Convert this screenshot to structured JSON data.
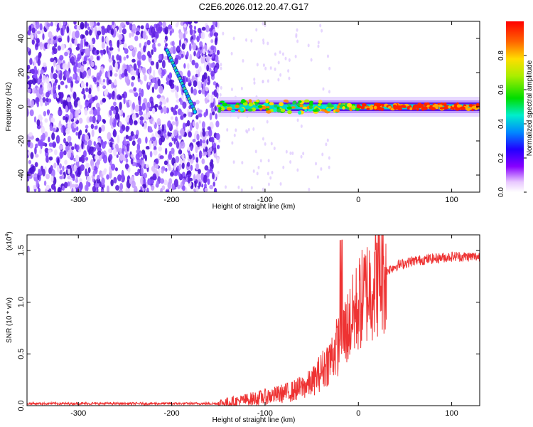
{
  "title": "C2E6.2026.012.20.47.G17",
  "chart_data": [
    {
      "type": "heatmap",
      "title": "C2E6.2026.012.20.47.G17",
      "xlabel": "Height of straight line (km)",
      "ylabel": "Frequency (Hz)",
      "xlim": [
        -355,
        130
      ],
      "ylim": [
        -50,
        50
      ],
      "xticks": [
        -300,
        -200,
        -100,
        0,
        100
      ],
      "xtick_labels": [
        "-300",
        "-200",
        "-100",
        "0",
        "100"
      ],
      "yticks": [
        -40,
        -20,
        0,
        20,
        40
      ],
      "ytick_labels": [
        "-40",
        "-20",
        "0",
        "20",
        "40"
      ],
      "noise_region_x": [
        -355,
        -150
      ],
      "diagonal_trace": {
        "x": [
          -205,
          -175
        ],
        "y": [
          33,
          -3
        ]
      },
      "signal_band": {
        "x_start": -150,
        "x_end": 130,
        "center_hz": 0
      },
      "colorbar": {
        "label": "Normalized spectral amplitude",
        "range": [
          0.0,
          1.0
        ],
        "ticks": [
          0.0,
          0.2,
          0.4,
          0.6,
          0.8
        ],
        "tick_labels": [
          "0.0",
          "0.2",
          "0.4",
          "0.6",
          "0.8"
        ]
      }
    },
    {
      "type": "line",
      "xlabel": "Height of straight line (km)",
      "ylabel": "SNR (10 * v/v)",
      "scale_label": "(x10",
      "scale_exp": "4",
      "scale_close": ")",
      "xlim": [
        -355,
        130
      ],
      "ylim": [
        0,
        1.65
      ],
      "xticks": [
        -300,
        -200,
        -100,
        0,
        100
      ],
      "xtick_labels": [
        "-300",
        "-200",
        "-100",
        "0",
        "100"
      ],
      "yticks": [
        0,
        0.5,
        1.0,
        1.5
      ],
      "ytick_labels": [
        "0.0",
        "0.5",
        "1.0",
        "1.5"
      ],
      "color": "#ee3333",
      "series": [
        {
          "name": "SNR",
          "x": [
            -355,
            -300,
            -250,
            -200,
            -150,
            -130,
            -110,
            -90,
            -70,
            -50,
            -40,
            -30,
            -20,
            -10,
            0,
            10,
            20,
            30,
            40,
            60,
            80,
            100,
            130
          ],
          "y": [
            0.02,
            0.02,
            0.02,
            0.02,
            0.02,
            0.04,
            0.07,
            0.1,
            0.14,
            0.22,
            0.33,
            0.45,
            0.62,
            0.78,
            0.97,
            1.12,
            1.24,
            1.3,
            1.35,
            1.4,
            1.42,
            1.44,
            1.44
          ]
        }
      ]
    }
  ]
}
